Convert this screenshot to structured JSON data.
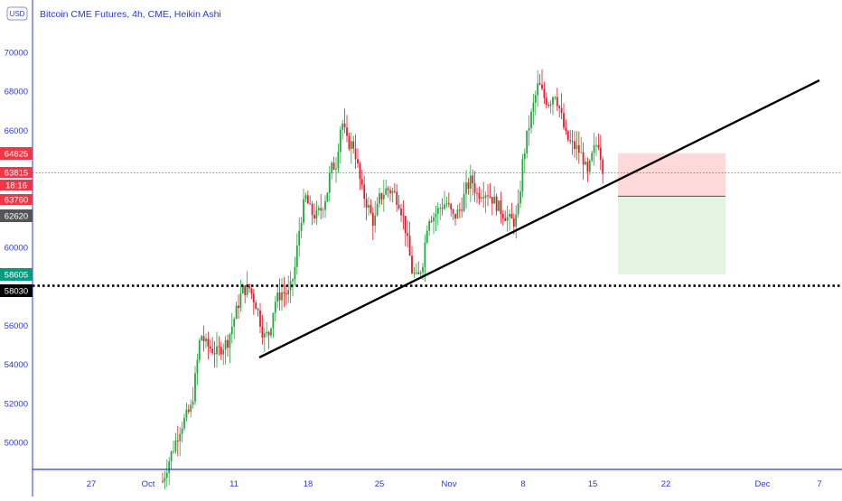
{
  "chart_data": {
    "type": "candlestick",
    "title": "Bitcoin CME Futures, 4h, CME, Heikin Ashi",
    "currency": "USD",
    "y_ticks": [
      50000,
      52000,
      54000,
      56000,
      60000,
      66000,
      68000,
      70000
    ],
    "x_ticks": [
      "27",
      "Oct",
      "11",
      "18",
      "25",
      "Nov",
      "8",
      "15",
      "22",
      "Dec",
      "7"
    ],
    "ylim": [
      48500,
      71000
    ],
    "price_tags": [
      {
        "label": "64825",
        "color": "#f23645",
        "text_color": "#ffffff"
      },
      {
        "label": "63815",
        "color": "#f23645",
        "text_color": "#ffffff"
      },
      {
        "label": "18:16",
        "color": "#f23645",
        "text_color": "#ffffff"
      },
      {
        "label": "63760",
        "color": "#f23645",
        "text_color": "#ffffff"
      },
      {
        "label": "62620",
        "color": "#555555",
        "text_color": "#ffffff"
      },
      {
        "label": "58605",
        "color": "#089981",
        "text_color": "#ffffff"
      },
      {
        "label": "58030",
        "color": "#000000",
        "text_color": "#ffffff"
      }
    ],
    "current_price": 63815,
    "support_level": 58030,
    "position": {
      "stop": 64825,
      "entry": 62620,
      "target": 58605
    },
    "colors": {
      "up": "#26a641",
      "down": "#e8192c",
      "axis": "#2b3ad8",
      "current_line": "#f23645"
    }
  }
}
